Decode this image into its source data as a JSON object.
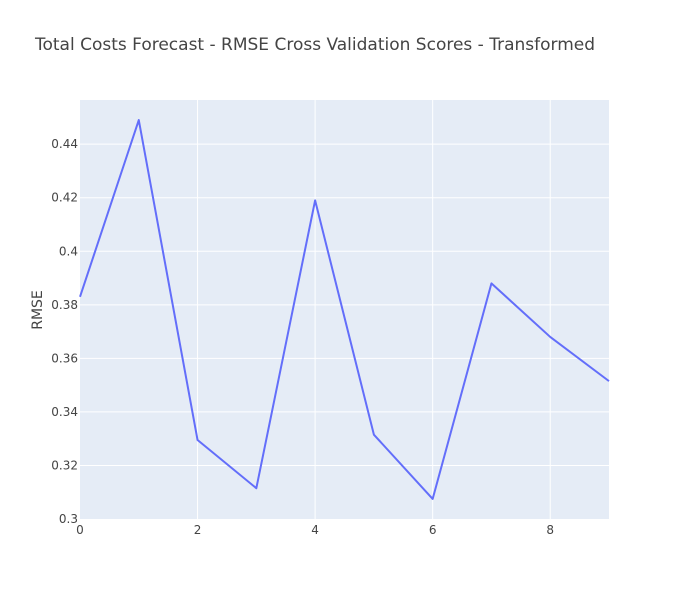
{
  "chart_data": {
    "type": "line",
    "title": "Total Costs Forecast - RMSE Cross Validation Scores - Transformed",
    "xlabel": "",
    "ylabel": "RMSE",
    "x": [
      0,
      1,
      2,
      3,
      4,
      5,
      6,
      7,
      8,
      9
    ],
    "series": [
      {
        "values": [
          0.383,
          0.449,
          0.3295,
          0.3115,
          0.419,
          0.3315,
          0.3075,
          0.388,
          0.368,
          0.3515
        ]
      }
    ],
    "xlim": [
      0,
      9
    ],
    "ylim": [
      0.3,
      0.4565
    ],
    "xticks": [
      0,
      2,
      4,
      6,
      8
    ],
    "xtick_labels": [
      "0",
      "2",
      "4",
      "6",
      "8"
    ],
    "yticks": [
      0.3,
      0.32,
      0.34,
      0.36,
      0.38,
      0.4,
      0.42,
      0.44
    ],
    "ytick_labels": [
      "0.3",
      "0.32",
      "0.34",
      "0.36",
      "0.38",
      "0.4",
      "0.42",
      "0.44"
    ],
    "grid": true,
    "colors": {
      "line": "#636efa",
      "plot_background": "#e5ecf6",
      "grid": "#ffffff"
    }
  }
}
